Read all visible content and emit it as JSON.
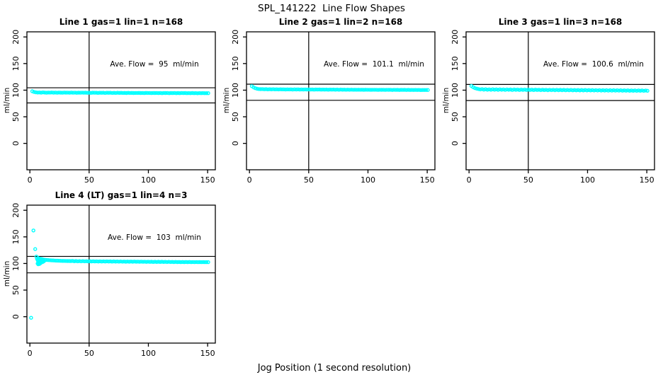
{
  "page": {
    "title": "SPL_141222  Line Flow Shapes",
    "xlabel": "Jog Position (1 second resolution)"
  },
  "colors": {
    "points": "#00FFFF",
    "axis": "#000000",
    "background": "#FFFFFF"
  },
  "chart_data": [
    {
      "type": "scatter",
      "title": "Line 1 gas=1 lin=1 n=168",
      "annotation": "Ave. Flow =  95  ml/min",
      "ave_flow_ml_min": 95,
      "n": 168,
      "ylabel": "ml/min",
      "x_ticks": [
        0,
        50,
        100,
        150
      ],
      "y_ticks": [
        0,
        50,
        100,
        150,
        200
      ],
      "xlim": [
        -2.5,
        156.5
      ],
      "ylim": [
        -49.6,
        209.6
      ],
      "vline_x": 50,
      "hlines": [
        104.5,
        76.0
      ],
      "series": {
        "x0": 2,
        "dx": 1.5,
        "y": [
          98,
          96.6,
          95.9,
          95.6,
          95.7,
          95.3,
          95.8,
          95.5,
          95.2,
          95.6,
          95.4,
          95.7,
          95.3,
          95.5,
          95.2,
          95.6,
          95.3,
          95.1,
          95.5,
          95.3,
          95.4,
          95.1,
          95.5,
          95.2,
          95.4,
          95.0,
          95.3,
          95.1,
          95.4,
          95.2,
          95.3,
          95.0,
          95.2,
          94.9,
          95.3,
          95.1,
          95.2,
          94.9,
          95.2,
          95.0,
          95.1,
          94.8,
          95.2,
          95.0,
          95.1,
          94.8,
          95.0,
          94.7,
          95.1,
          94.9,
          95.0,
          94.7,
          94.9,
          94.6,
          95.0,
          94.8,
          94.9,
          94.6,
          94.8,
          94.7,
          94.9,
          94.6,
          94.8,
          94.5,
          94.9,
          94.7,
          94.8,
          94.5,
          94.7,
          94.6,
          94.8,
          94.5,
          94.7,
          94.4,
          94.8,
          94.6,
          94.7,
          94.4,
          94.6,
          94.5,
          94.7,
          94.4,
          94.6,
          94.3,
          94.7,
          94.5,
          94.6,
          94.3,
          94.5,
          94.4,
          94.6,
          94.3,
          94.5,
          94.2,
          94.5,
          94.4,
          94.5,
          94.3,
          94.4,
          94.3
        ]
      },
      "extra_points": []
    },
    {
      "type": "scatter",
      "title": "Line 2 gas=1 lin=2 n=168",
      "annotation": "Ave. Flow =  101.1  ml/min",
      "ave_flow_ml_min": 101.1,
      "n": 168,
      "ylabel": "ml/min",
      "x_ticks": [
        0,
        50,
        100,
        150
      ],
      "y_ticks": [
        0,
        50,
        100,
        150,
        200
      ],
      "xlim": [
        -2.5,
        156.5
      ],
      "ylim": [
        -49.6,
        209.6
      ],
      "vline_x": 50,
      "hlines": [
        111.2,
        80.9
      ],
      "series": {
        "x0": 2,
        "dx": 1.5,
        "y": [
          107.5,
          105.3,
          103.6,
          102.6,
          102.1,
          101.9,
          102.0,
          101.7,
          101.9,
          101.6,
          101.8,
          101.5,
          101.8,
          101.6,
          101.7,
          101.4,
          101.7,
          101.5,
          101.6,
          101.3,
          101.6,
          101.4,
          101.5,
          101.2,
          101.5,
          101.3,
          101.5,
          101.2,
          101.4,
          101.2,
          101.4,
          101.1,
          101.4,
          101.2,
          101.3,
          101.0,
          101.3,
          101.1,
          101.3,
          101.0,
          101.2,
          101.0,
          101.2,
          100.9,
          101.2,
          101.0,
          101.1,
          100.9,
          101.1,
          100.8,
          101.1,
          100.9,
          101.0,
          100.8,
          101.0,
          100.7,
          101.0,
          100.8,
          100.9,
          100.7,
          100.9,
          100.8,
          100.9,
          100.6,
          100.9,
          100.7,
          100.8,
          100.6,
          100.8,
          100.7,
          100.8,
          100.5,
          100.8,
          100.6,
          100.7,
          100.5,
          100.7,
          100.6,
          100.7,
          100.4,
          100.7,
          100.5,
          100.6,
          100.4,
          100.6,
          100.5,
          100.6,
          100.3,
          100.6,
          100.4,
          100.5,
          100.3,
          100.5,
          100.4,
          100.5,
          100.2,
          100.4,
          100.3,
          100.4,
          100.3
        ]
      },
      "extra_points": []
    },
    {
      "type": "scatter",
      "title": "Line 3 gas=1 lin=3 n=168",
      "annotation": "Ave. Flow =  100.6  ml/min",
      "ave_flow_ml_min": 100.6,
      "n": 168,
      "ylabel": "ml/min",
      "x_ticks": [
        0,
        50,
        100,
        150
      ],
      "y_ticks": [
        0,
        50,
        100,
        150,
        200
      ],
      "xlim": [
        -2.5,
        156.5
      ],
      "ylim": [
        -49.6,
        209.6
      ],
      "vline_x": 50,
      "hlines": [
        110.7,
        80.5
      ],
      "series": {
        "x0": 2,
        "dx": 1.5,
        "y": [
          107.8,
          105.5,
          103.8,
          102.8,
          102.0,
          101.4,
          102.1,
          101.0,
          101.8,
          100.9,
          101.6,
          100.7,
          101.7,
          100.9,
          101.5,
          100.6,
          101.5,
          100.8,
          101.4,
          100.5,
          101.4,
          100.7,
          101.3,
          100.4,
          101.3,
          100.6,
          101.2,
          100.4,
          101.2,
          100.5,
          101.1,
          100.3,
          101.1,
          100.4,
          101.0,
          100.2,
          101.0,
          100.3,
          100.9,
          100.1,
          100.9,
          100.2,
          100.8,
          100.0,
          100.8,
          100.1,
          100.7,
          99.9,
          100.7,
          100.0,
          100.6,
          99.9,
          100.6,
          99.8,
          100.5,
          99.8,
          100.5,
          99.7,
          100.4,
          99.7,
          100.4,
          99.6,
          100.3,
          99.6,
          100.3,
          99.5,
          100.2,
          99.5,
          100.2,
          99.4,
          100.1,
          99.4,
          100.1,
          99.3,
          100.0,
          99.3,
          100.0,
          99.2,
          99.9,
          99.2,
          99.9,
          99.1,
          99.8,
          99.1,
          99.8,
          99.0,
          99.7,
          99.0,
          99.7,
          98.9,
          99.6,
          98.9,
          99.6,
          98.8,
          99.5,
          98.9,
          99.5,
          98.8,
          99.4,
          98.9
        ]
      },
      "extra_points": []
    },
    {
      "type": "scatter",
      "title": "Line 4 (LT) gas=1 lin=4 n=3",
      "annotation": "Ave. Flow =  103  ml/min",
      "ave_flow_ml_min": 103,
      "n": 3,
      "ylabel": "ml/min",
      "x_ticks": [
        0,
        50,
        100,
        150
      ],
      "y_ticks": [
        0,
        50,
        100,
        150,
        200
      ],
      "xlim": [
        -2.5,
        156.5
      ],
      "ylim": [
        -49.6,
        209.6
      ],
      "vline_x": 50,
      "hlines": [
        113.3,
        82.4
      ],
      "series": {
        "x0": 7,
        "dx": 1.45,
        "y": [
          110.2,
          109.0,
          108.2,
          107.5,
          107.0,
          106.6,
          106.3,
          106.0,
          105.8,
          105.6,
          105.4,
          105.3,
          105.1,
          105.0,
          104.9,
          104.8,
          104.7,
          104.6,
          104.6,
          104.5,
          104.8,
          104.2,
          104.6,
          104.1,
          104.5,
          104.0,
          104.4,
          104.0,
          104.3,
          103.9,
          104.3,
          103.8,
          104.2,
          103.8,
          104.1,
          103.7,
          104.1,
          103.7,
          104.0,
          103.6,
          104.0,
          103.6,
          103.9,
          103.5,
          103.9,
          103.5,
          103.8,
          103.4,
          103.8,
          103.4,
          103.7,
          103.3,
          103.7,
          103.3,
          103.6,
          103.2,
          103.6,
          103.2,
          103.5,
          103.1,
          103.5,
          103.1,
          103.4,
          103.0,
          103.4,
          103.0,
          103.3,
          102.9,
          103.3,
          102.9,
          103.2,
          102.8,
          103.2,
          102.8,
          103.1,
          102.7,
          103.1,
          102.7,
          103.0,
          102.6,
          103.0,
          102.6,
          102.9,
          102.5,
          102.9,
          102.5,
          102.8,
          102.4,
          102.8,
          102.4,
          102.7,
          102.5,
          102.7,
          102.4,
          102.6,
          102.5,
          102.6,
          102.4,
          102.5,
          102.4
        ]
      },
      "extra_points": [
        [
          1,
          -2
        ],
        [
          3,
          162
        ],
        [
          4.5,
          127
        ],
        [
          5.5,
          113
        ],
        [
          6,
          109
        ],
        [
          6.5,
          100
        ],
        [
          7,
          98.5
        ],
        [
          7.5,
          101
        ],
        [
          8,
          99
        ],
        [
          8.5,
          103
        ],
        [
          9,
          100.5
        ],
        [
          9.5,
          104
        ],
        [
          10,
          102
        ],
        [
          10.5,
          105
        ],
        [
          11,
          103
        ],
        [
          11.5,
          106
        ],
        [
          12,
          104.5
        ],
        [
          8,
          106
        ],
        [
          9,
          107.5
        ],
        [
          10,
          108.5
        ],
        [
          7,
          104
        ],
        [
          6.5,
          106.5
        ]
      ]
    }
  ]
}
